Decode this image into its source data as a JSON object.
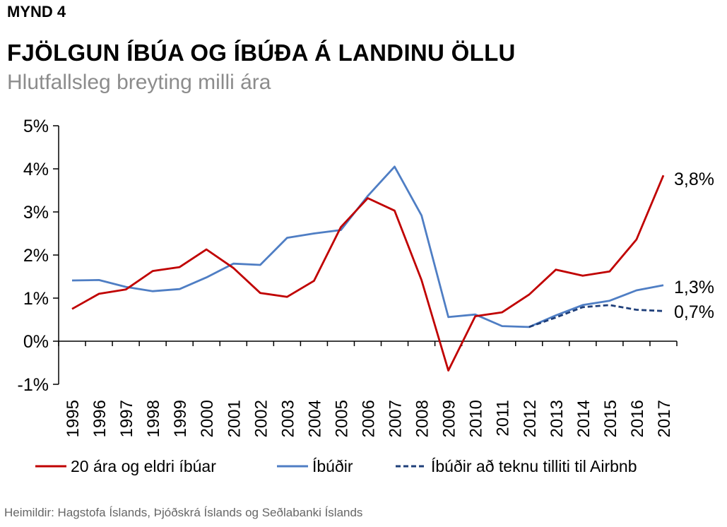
{
  "header": {
    "figure_label": "MYND 4",
    "title": "FJÖLGUN ÍBÚA OG ÍBÚÐA Á LANDINU ÖLLU",
    "subtitle": "Hlutfallsleg breyting milli ára"
  },
  "source": "Heimildir: Hagstofa Íslands, Þjóðskrá Íslands og Seðlabanki Íslands",
  "chart_data": {
    "type": "line",
    "title": "FJÖLGUN ÍBÚA OG ÍBÚÐA Á LANDINU ÖLLU",
    "subtitle": "Hlutfallsleg breyting milli ára",
    "xlabel": "",
    "ylabel": "",
    "ylim": [
      -1,
      5
    ],
    "yticks": [
      -1,
      0,
      1,
      2,
      3,
      4,
      5
    ],
    "ytick_labels": [
      "-1%",
      "0%",
      "1%",
      "2%",
      "3%",
      "4%",
      "5%"
    ],
    "grid": false,
    "legend_position": "bottom",
    "x": [
      "1995",
      "1996",
      "1997",
      "1998",
      "1999",
      "2000",
      "2001",
      "2002",
      "2003",
      "2004",
      "2005",
      "2006",
      "2007",
      "2008",
      "2009",
      "2010",
      "2011",
      "2012",
      "2013",
      "2014",
      "2015",
      "2016",
      "2017"
    ],
    "series": [
      {
        "name": "20 ára og eldri íbúar",
        "color": "#c00000",
        "style": "solid",
        "values": [
          0.75,
          1.1,
          1.2,
          1.63,
          1.72,
          2.13,
          1.7,
          1.12,
          1.03,
          1.4,
          2.65,
          3.32,
          3.03,
          1.42,
          -0.68,
          0.58,
          0.67,
          1.08,
          1.66,
          1.52,
          1.62,
          2.36,
          3.85
        ],
        "end_label": "3,8%"
      },
      {
        "name": "Íbúðir",
        "color": "#4f7ec4",
        "style": "solid",
        "values": [
          1.41,
          1.42,
          1.26,
          1.16,
          1.21,
          1.48,
          1.8,
          1.77,
          2.4,
          2.5,
          2.58,
          3.37,
          4.05,
          2.92,
          0.56,
          0.62,
          0.35,
          0.33,
          0.6,
          0.84,
          0.94,
          1.18,
          1.3
        ],
        "end_label": "1,3%"
      },
      {
        "name": "Íbúðir að teknu tilliti til Airbnb",
        "color": "#1f3f7a",
        "style": "dashed",
        "values": [
          null,
          null,
          null,
          null,
          null,
          null,
          null,
          null,
          null,
          null,
          null,
          null,
          null,
          null,
          null,
          null,
          null,
          0.33,
          0.55,
          0.79,
          0.84,
          0.73,
          0.7
        ],
        "end_label": "0,7%"
      }
    ]
  }
}
